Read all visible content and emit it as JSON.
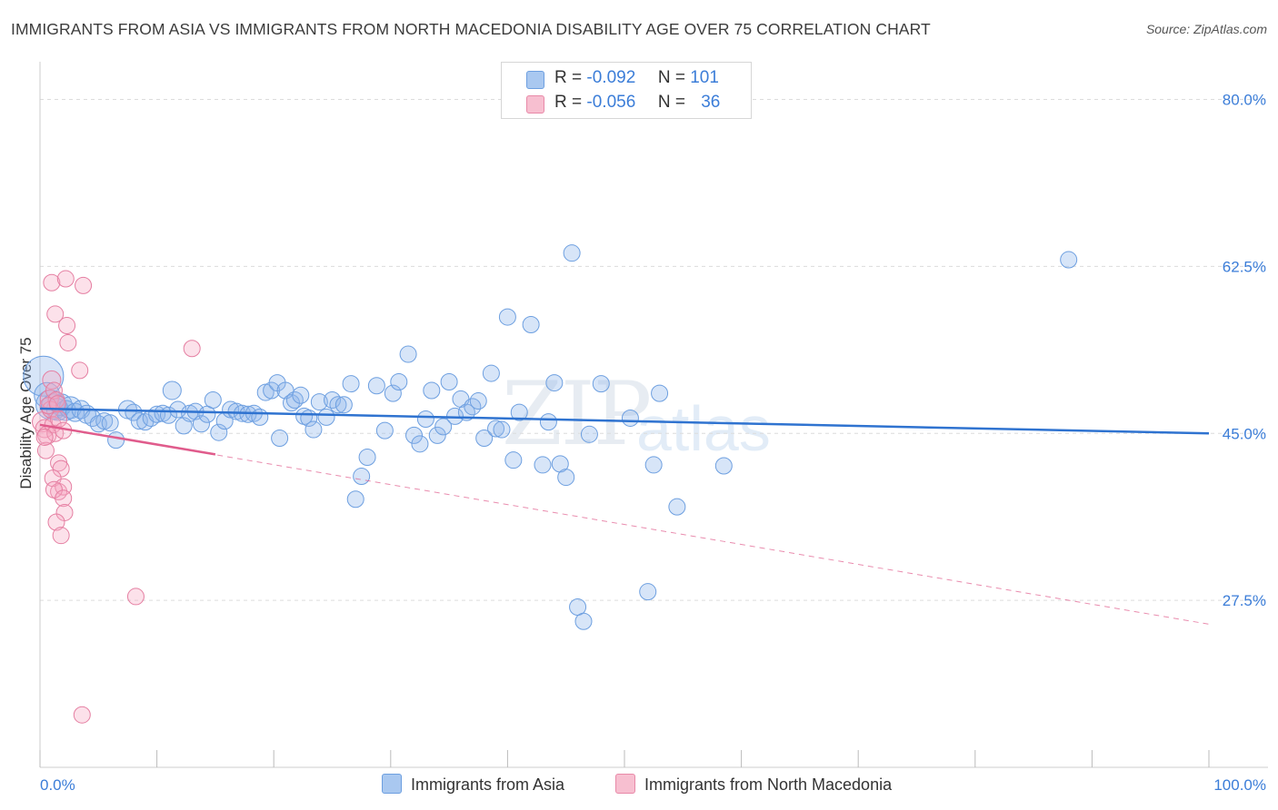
{
  "title": "IMMIGRANTS FROM ASIA VS IMMIGRANTS FROM NORTH MACEDONIA DISABILITY AGE OVER 75 CORRELATION CHART",
  "source": "Source: ZipAtlas.com",
  "watermark": {
    "zip": "ZIP",
    "atlas": "atlas"
  },
  "legend": {
    "r_label": "R =",
    "n_label": "N =",
    "rows": [
      {
        "r": "-0.092",
        "n": "101",
        "color": "#a9c8f0",
        "border": "#6d9fe0"
      },
      {
        "r": "-0.056",
        "n": "36",
        "color": "#f7bfd0",
        "border": "#e889a8"
      }
    ]
  },
  "colors": {
    "asia_fill": "rgba(140,180,235,0.35)",
    "asia_stroke": "#6d9fe0",
    "asia_line": "#2f73d0",
    "mac_fill": "rgba(245,170,195,0.35)",
    "mac_stroke": "#e57fa2",
    "mac_line": "#e05c8c",
    "tick_label": "#3b7dd8",
    "grid": "#dcdcdc"
  },
  "chart_data": {
    "type": "scatter",
    "title": "IMMIGRANTS FROM ASIA VS IMMIGRANTS FROM NORTH MACEDONIA DISABILITY AGE OVER 75 CORRELATION CHART",
    "xlabel": "",
    "ylabel": "Disability Age Over 75",
    "xlim": [
      0,
      100
    ],
    "ylim": [
      10,
      83
    ],
    "x_tick_labels": [
      "0.0%",
      "100.0%"
    ],
    "y_ticks": [
      80.0,
      62.5,
      45.0,
      27.5
    ],
    "y_tick_labels": [
      "80.0%",
      "62.5%",
      "45.0%",
      "27.5%"
    ],
    "grid": true,
    "legend_position": "top-center",
    "series": [
      {
        "name": "Immigrants from Asia",
        "r": -0.092,
        "n": 101,
        "trend": {
          "x": [
            0,
            100
          ],
          "y": [
            47.6,
            45.0
          ]
        },
        "points": [
          [
            0.3,
            51,
            22
          ],
          [
            0.6,
            49,
            14
          ],
          [
            0.9,
            48,
            16
          ],
          [
            1.2,
            47.8,
            14
          ],
          [
            1.5,
            47.5,
            12
          ],
          [
            1.8,
            48,
            12
          ],
          [
            2.2,
            47.4,
            11
          ],
          [
            2.6,
            47.7,
            12
          ],
          [
            3,
            47.2,
            10
          ],
          [
            3.5,
            47.5,
            10
          ],
          [
            4,
            47,
            10
          ],
          [
            4.5,
            46.6,
            9
          ],
          [
            5,
            46,
            9
          ],
          [
            5.5,
            46.3,
            9
          ],
          [
            6,
            46.1,
            9
          ],
          [
            6.5,
            44.3,
            9
          ],
          [
            7.5,
            47.5,
            10
          ],
          [
            8,
            47.2,
            9
          ],
          [
            8.5,
            46.3,
            9
          ],
          [
            9,
            46.2,
            9
          ],
          [
            9.5,
            46.6,
            9
          ],
          [
            10,
            47,
            9
          ],
          [
            10.5,
            47.1,
            9
          ],
          [
            11,
            46.9,
            9
          ],
          [
            11.3,
            49.5,
            10
          ],
          [
            11.8,
            47.5,
            9
          ],
          [
            12.3,
            45.8,
            9
          ],
          [
            12.8,
            47.1,
            9
          ],
          [
            13.3,
            47.3,
            9
          ],
          [
            13.8,
            46,
            9
          ],
          [
            14.3,
            47,
            9
          ],
          [
            14.8,
            48.5,
            9
          ],
          [
            15.3,
            45.1,
            9
          ],
          [
            15.8,
            46.3,
            9
          ],
          [
            16.3,
            47.5,
            9
          ],
          [
            16.8,
            47.3,
            9
          ],
          [
            17.3,
            47.1,
            9
          ],
          [
            17.8,
            47,
            9
          ],
          [
            18.3,
            47.1,
            9
          ],
          [
            18.8,
            46.7,
            9
          ],
          [
            19.3,
            49.3,
            9
          ],
          [
            19.8,
            49.5,
            9
          ],
          [
            20.3,
            50.3,
            9
          ],
          [
            20.5,
            44.5,
            9
          ],
          [
            21,
            49.5,
            9
          ],
          [
            21.5,
            48.2,
            9
          ],
          [
            21.8,
            48.5,
            9
          ],
          [
            22.3,
            49,
            9
          ],
          [
            22.6,
            46.8,
            9
          ],
          [
            23,
            46.6,
            9
          ],
          [
            23.4,
            45.4,
            9
          ],
          [
            23.9,
            48.3,
            9
          ],
          [
            24.5,
            46.7,
            9
          ],
          [
            25,
            48.5,
            9
          ],
          [
            25.5,
            48,
            9
          ],
          [
            26,
            48,
            9
          ],
          [
            26.6,
            50.2,
            9
          ],
          [
            27,
            38.1,
            9
          ],
          [
            27.5,
            40.5,
            9
          ],
          [
            28,
            42.5,
            9
          ],
          [
            28.8,
            50,
            9
          ],
          [
            29.5,
            45.3,
            9
          ],
          [
            30.2,
            49.2,
            9
          ],
          [
            30.7,
            50.4,
            9
          ],
          [
            31.5,
            53.3,
            9
          ],
          [
            32,
            44.8,
            9
          ],
          [
            32.5,
            43.9,
            9
          ],
          [
            33,
            46.5,
            9
          ],
          [
            33.5,
            49.5,
            9
          ],
          [
            34,
            44.8,
            9
          ],
          [
            34.5,
            45.7,
            9
          ],
          [
            35,
            50.4,
            9
          ],
          [
            35.5,
            46.8,
            9
          ],
          [
            36,
            48.6,
            9
          ],
          [
            36.5,
            47.2,
            9
          ],
          [
            37,
            47.8,
            9
          ],
          [
            37.5,
            48.4,
            9
          ],
          [
            38,
            44.5,
            9
          ],
          [
            38.6,
            51.3,
            9
          ],
          [
            39,
            45.5,
            9
          ],
          [
            39.5,
            45.4,
            9
          ],
          [
            40,
            57.2,
            9
          ],
          [
            40.5,
            42.2,
            9
          ],
          [
            41,
            47.2,
            9
          ],
          [
            42,
            56.4,
            9
          ],
          [
            43,
            41.7,
            9
          ],
          [
            43.5,
            46.2,
            9
          ],
          [
            44,
            50.3,
            9
          ],
          [
            44.5,
            41.8,
            9
          ],
          [
            45,
            40.4,
            9
          ],
          [
            45.5,
            63.9,
            9
          ],
          [
            46,
            26.8,
            9
          ],
          [
            46.5,
            25.3,
            9
          ],
          [
            47,
            44.9,
            9
          ],
          [
            48,
            50.2,
            9
          ],
          [
            50.5,
            46.6,
            9
          ],
          [
            52,
            28.4,
            9
          ],
          [
            52.5,
            41.7,
            9
          ],
          [
            53,
            49.2,
            9
          ],
          [
            54.5,
            37.3,
            9
          ],
          [
            88,
            63.2,
            9
          ],
          [
            58.5,
            41.6,
            9
          ]
        ]
      },
      {
        "name": "Immigrants from North Macedonia",
        "r": -0.056,
        "n": 36,
        "trend": {
          "x": [
            0,
            15
          ],
          "y": [
            45.9,
            42.8
          ]
        },
        "trend_extended": {
          "x": [
            0,
            100
          ],
          "y": [
            45.9,
            25.0
          ]
        },
        "points": [
          [
            0.2,
            46.2,
            11
          ],
          [
            0.4,
            45.5,
            10
          ],
          [
            0.6,
            44.8,
            10
          ],
          [
            0.5,
            43.2,
            9
          ],
          [
            0.8,
            48.6,
            10
          ],
          [
            1.0,
            50.6,
            10
          ],
          [
            1.2,
            49.5,
            9
          ],
          [
            1.4,
            48.5,
            9
          ],
          [
            0.9,
            47.5,
            9
          ],
          [
            1.1,
            45.9,
            9
          ],
          [
            1.3,
            45,
            9
          ],
          [
            1.6,
            46.5,
            9
          ],
          [
            1.0,
            60.8,
            9
          ],
          [
            1.3,
            57.5,
            9
          ],
          [
            2.2,
            61.2,
            9
          ],
          [
            2.3,
            56.3,
            9
          ],
          [
            2.4,
            54.5,
            9
          ],
          [
            3.4,
            51.6,
            9
          ],
          [
            3.7,
            60.5,
            9
          ],
          [
            2.0,
            45.3,
            9
          ],
          [
            1.6,
            41.9,
            9
          ],
          [
            1.8,
            41.3,
            9
          ],
          [
            1.1,
            40.3,
            9
          ],
          [
            1.6,
            38.9,
            9
          ],
          [
            2.0,
            39.4,
            9
          ],
          [
            1.2,
            39.1,
            9
          ],
          [
            2.0,
            38.2,
            9
          ],
          [
            2.1,
            36.7,
            9
          ],
          [
            1.4,
            35.7,
            9
          ],
          [
            1.8,
            34.3,
            9
          ],
          [
            13.0,
            53.9,
            9
          ],
          [
            8.2,
            27.9,
            9
          ],
          [
            3.6,
            15.5,
            9
          ],
          [
            0.4,
            44.6,
            9
          ],
          [
            0.7,
            47.9,
            9
          ],
          [
            1.5,
            48.1,
            9
          ]
        ]
      }
    ]
  },
  "bottom_legend": [
    {
      "label": "Immigrants from Asia",
      "color": "#a9c8f0",
      "border": "#6d9fe0"
    },
    {
      "label": "Immigrants from North Macedonia",
      "color": "#f7bfd0",
      "border": "#e889a8"
    }
  ]
}
